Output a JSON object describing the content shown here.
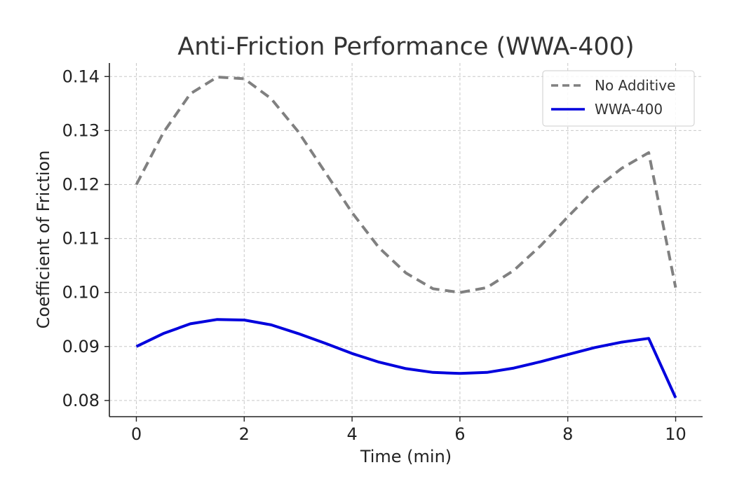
{
  "chart_data": {
    "type": "line",
    "title": "Anti-Friction Performance (WWA-400)",
    "xlabel": "Time (min)",
    "ylabel": "Coefficient of Friction",
    "xlim": [
      -0.5,
      10.5
    ],
    "ylim": [
      0.077,
      0.1425
    ],
    "xticks": [
      0,
      2,
      4,
      6,
      8,
      10
    ],
    "xtick_labels": [
      "0",
      "2",
      "4",
      "6",
      "8",
      "10"
    ],
    "yticks": [
      0.08,
      0.09,
      0.1,
      0.11,
      0.12,
      0.13,
      0.14
    ],
    "ytick_labels": [
      "0.08",
      "0.09",
      "0.10",
      "0.11",
      "0.12",
      "0.13",
      "0.14"
    ],
    "grid": true,
    "legend": "top-right",
    "x": [
      0,
      0.5,
      1,
      1.5,
      2,
      2.5,
      3,
      3.5,
      4,
      4.5,
      5,
      5.5,
      6,
      6.5,
      7,
      7.5,
      8,
      8.5,
      9,
      9.5,
      10
    ],
    "series": [
      {
        "name": "No Additive",
        "color": "#808080",
        "style": "dashed",
        "values": [
          0.12,
          0.1296,
          0.1368,
          0.1399,
          0.1396,
          0.1359,
          0.1298,
          0.1223,
          0.1148,
          0.1083,
          0.1036,
          0.1007,
          0.1,
          0.1009,
          0.1041,
          0.1087,
          0.114,
          0.1191,
          0.123,
          0.1259,
          0.1009
        ]
      },
      {
        "name": "WWA-400",
        "color": "#0000dd",
        "style": "solid",
        "values": [
          0.09,
          0.0924,
          0.0942,
          0.095,
          0.0949,
          0.094,
          0.0924,
          0.0906,
          0.0887,
          0.0871,
          0.0859,
          0.0852,
          0.085,
          0.0852,
          0.086,
          0.0872,
          0.0885,
          0.0898,
          0.0908,
          0.0915,
          0.0805
        ]
      }
    ]
  }
}
